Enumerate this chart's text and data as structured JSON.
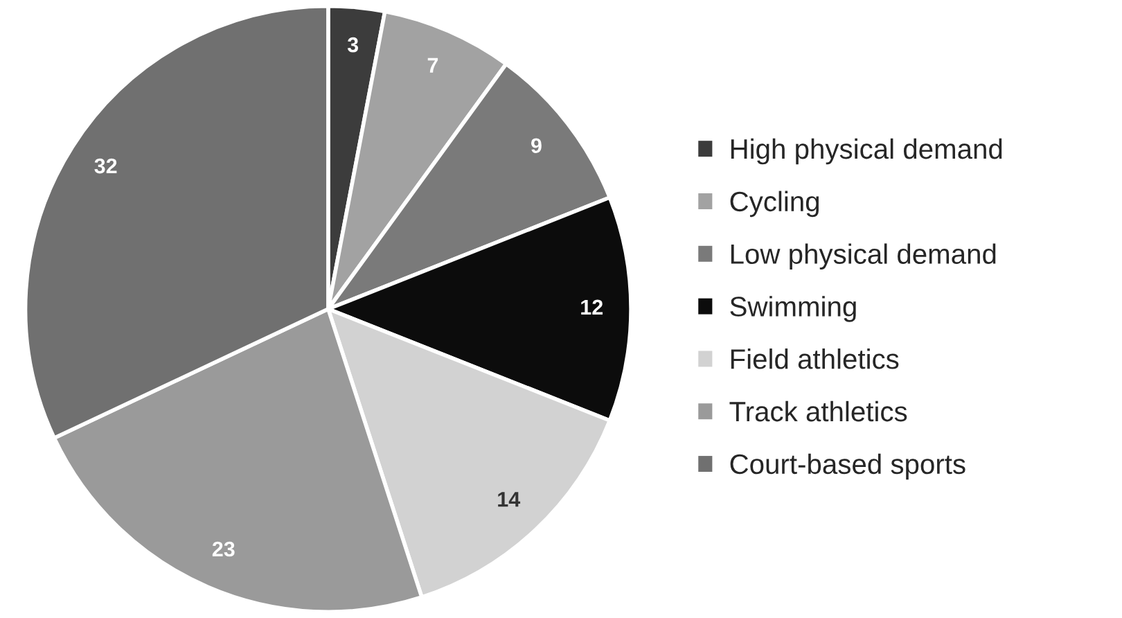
{
  "chart_data": {
    "type": "pie",
    "categories": [
      "High physical demand",
      "Cycling",
      "Low physical demand",
      "Swimming",
      "Field athletics",
      "Track athletics",
      "Court-based sports"
    ],
    "values": [
      3,
      7,
      9,
      12,
      14,
      23,
      32
    ],
    "colors": [
      "#3c3c3c",
      "#a2a2a2",
      "#7a7a7a",
      "#0c0c0c",
      "#d2d2d2",
      "#9a9a9a",
      "#707070"
    ],
    "data_labels": true,
    "legend": "right"
  }
}
